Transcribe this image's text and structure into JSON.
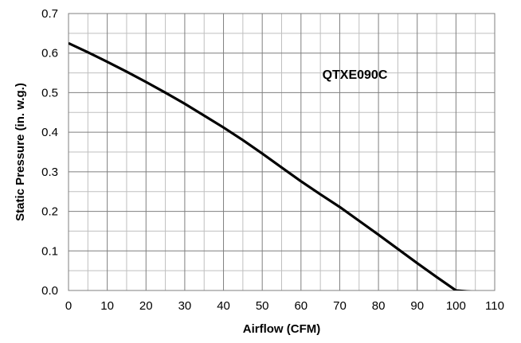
{
  "chart_data": {
    "type": "line",
    "title": "",
    "xlabel": "Airflow (CFM)",
    "ylabel": "Static Pressure (in. w.g.)",
    "xlim": [
      0,
      110
    ],
    "ylim": [
      0,
      0.7
    ],
    "x_ticks": [
      0,
      10,
      20,
      30,
      40,
      50,
      60,
      70,
      80,
      90,
      100,
      110
    ],
    "x_tick_labels": [
      "0",
      "10",
      "20",
      "30",
      "40",
      "50",
      "60",
      "70",
      "80",
      "90",
      "100",
      "110"
    ],
    "y_ticks": [
      0,
      0.1,
      0.2,
      0.3,
      0.4,
      0.5,
      0.6,
      0.7
    ],
    "y_tick_labels": [
      "0.0",
      "0.1",
      "0.2",
      "0.3",
      "0.4",
      "0.5",
      "0.6",
      "0.7"
    ],
    "x_minor_step": 5,
    "y_minor_step": 0.05,
    "grid": true,
    "annotation": "QTXE090C",
    "series": [
      {
        "color": "#000000",
        "x": [
          0,
          5,
          10,
          15,
          20,
          25,
          30,
          35,
          40,
          45,
          50,
          55,
          60,
          65,
          70,
          75,
          80,
          85,
          90,
          95,
          100,
          105
        ],
        "y": [
          0.625,
          0.602,
          0.578,
          0.553,
          0.527,
          0.5,
          0.472,
          0.442,
          0.412,
          0.38,
          0.346,
          0.311,
          0.276,
          0.243,
          0.211,
          0.176,
          0.141,
          0.105,
          0.069,
          0.034,
          0.0,
          -0.004
        ]
      }
    ]
  }
}
